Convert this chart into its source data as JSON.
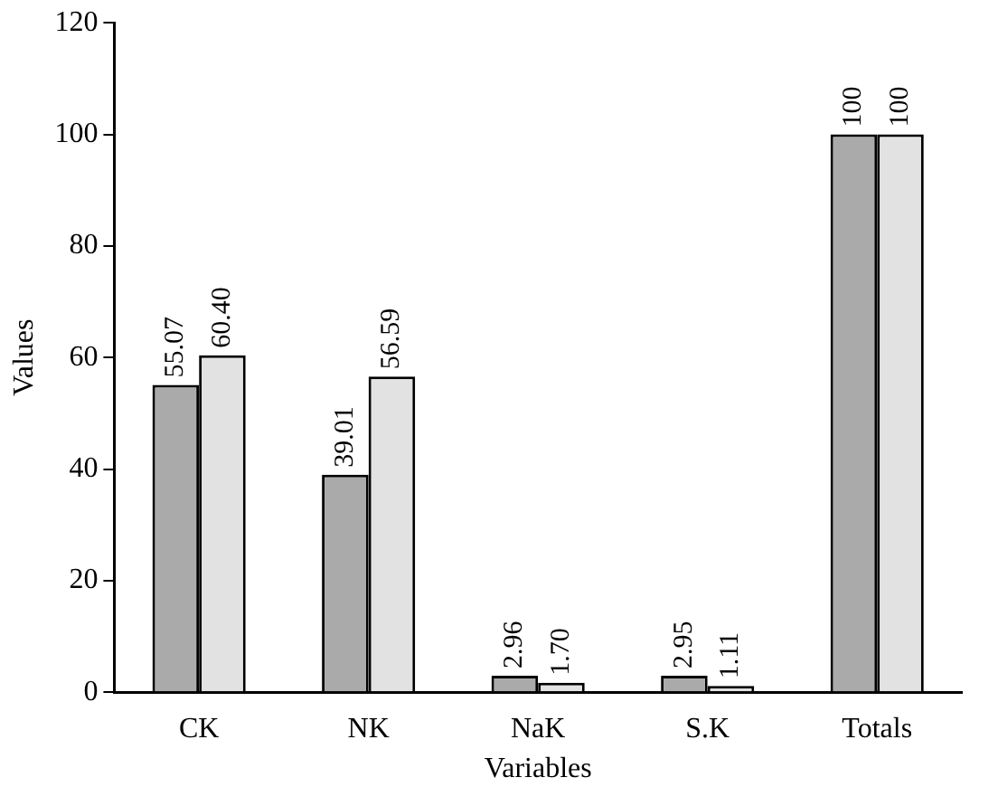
{
  "chart_data": {
    "type": "bar",
    "xlabel": "Variables",
    "ylabel": "Values",
    "categories": [
      "CK",
      "NK",
      "NaK",
      "S.K",
      "Totals"
    ],
    "series": [
      {
        "color": "#aaaaaa",
        "values": [
          55.07,
          39.01,
          2.96,
          2.95,
          100
        ],
        "value_labels": [
          "55.07",
          "39.01",
          "2.96",
          "2.95",
          "100"
        ]
      },
      {
        "color": "#e2e2e2",
        "values": [
          60.4,
          56.59,
          1.7,
          1.11,
          100
        ],
        "value_labels": [
          "60.40",
          "56.59",
          "1.70",
          "1.11",
          "100"
        ]
      }
    ],
    "ylim": [
      0,
      120
    ],
    "yticks": [
      0,
      20,
      40,
      60,
      80,
      100,
      120
    ],
    "grid": false,
    "legend": false
  }
}
